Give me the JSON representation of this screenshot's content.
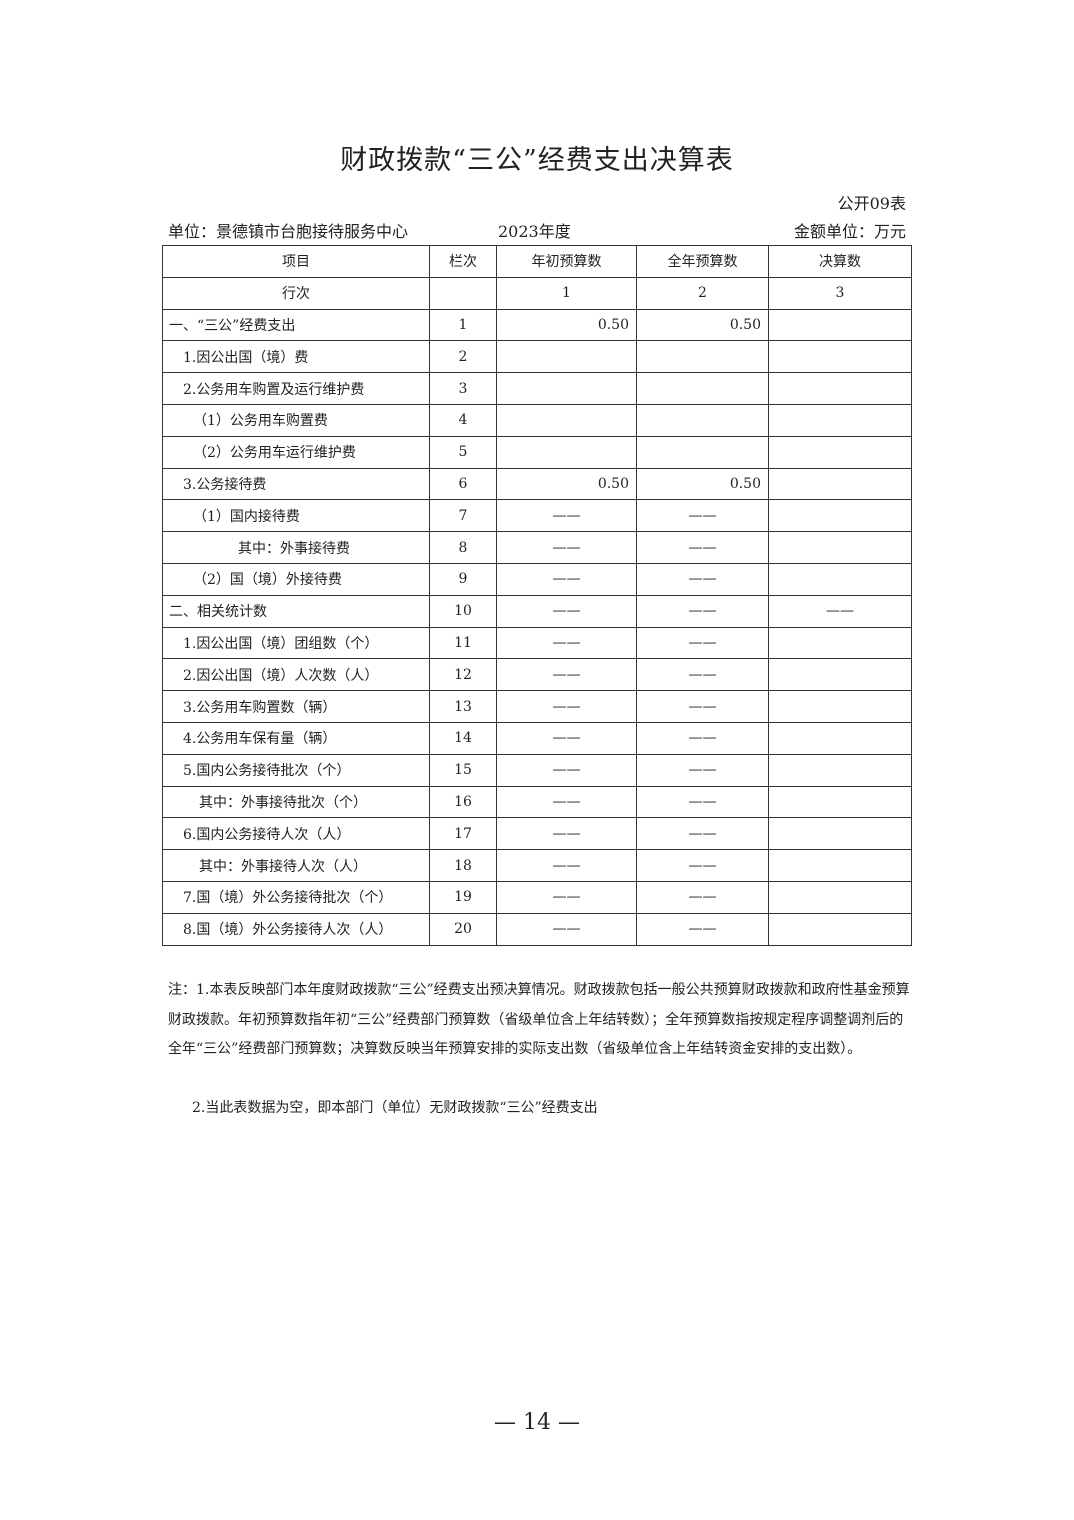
{
  "title": "财政拨款“三公”经费支出决算表",
  "table_code": "公开09表",
  "unit": "单位：景德镇市台胞接待服务中心",
  "year": "2023年度",
  "money_unit": "金额单位：万元",
  "headers": [
    "项目",
    "栏次",
    "年初预算数",
    "全年预算数",
    "决算数"
  ],
  "rows": [
    [
      "行次",
      "",
      "1",
      "2",
      "3"
    ],
    [
      "一、“三公”经费支出",
      "1",
      "0.50",
      "0.50",
      ""
    ],
    [
      "1.因公出国（境）费",
      "2",
      "",
      "",
      ""
    ],
    [
      "2.公务用车购置及运行维护费",
      "3",
      "",
      "",
      ""
    ],
    [
      "（1）公务用车购置费",
      "4",
      "",
      "",
      ""
    ],
    [
      "（2）公务用车运行维护费",
      "5",
      "",
      "",
      ""
    ],
    [
      "3.公务接待费",
      "6",
      "0.50",
      "0.50",
      ""
    ],
    [
      "（1）国内接待费",
      "7",
      "——",
      "——",
      ""
    ],
    [
      "其中：外事接待费",
      "8",
      "——",
      "——",
      ""
    ],
    [
      "（2）国（境）外接待费",
      "9",
      "——",
      "——",
      ""
    ],
    [
      "二、相关统计数",
      "10",
      "——",
      "——",
      "——"
    ],
    [
      "1.因公出国（境）团组数（个）",
      "11",
      "——",
      "——",
      ""
    ],
    [
      "2.因公出国（境）人次数（人）",
      "12",
      "——",
      "——",
      ""
    ],
    [
      "3.公务用车购置数（辆）",
      "13",
      "——",
      "——",
      ""
    ],
    [
      "4.公务用车保有量（辆）",
      "14",
      "——",
      "——",
      ""
    ],
    [
      "5.国内公务接待批次（个）",
      "15",
      "——",
      "——",
      ""
    ],
    [
      "其中：外事接待批次（个）",
      "16",
      "——",
      "——",
      ""
    ],
    [
      "6.国内公务接待人次（人）",
      "17",
      "——",
      "——",
      ""
    ],
    [
      "其中：外事接待人次（人）",
      "18",
      "——",
      "——",
      ""
    ],
    [
      "7.国（境）外公务接待批次（个）",
      "19",
      "——",
      "——",
      ""
    ],
    [
      "8.国（境）外公务接待人次（人）",
      "20",
      "——",
      "——",
      ""
    ]
  ],
  "note1": "注：1.本表反映部门本年度财政拨款“三公”经费支出预决算情况。财政拨款包括一般公共预算财政拨款和政府性基金预算财政拨款。年初预算数指年初“三公”经费部门预算数（省级单位含上年结转数）；全年预算数指按规定程序调整调剂后的全年“三公”经费部门预算数；决算数反映当年预算安排的实际支出数（省级单位含上年结转资金安排的支出数）。",
  "note2": "2.当此表数据为空，即本部门（单位）无财政拨款“三公”经费支出",
  "page_number": "— 14 —"
}
